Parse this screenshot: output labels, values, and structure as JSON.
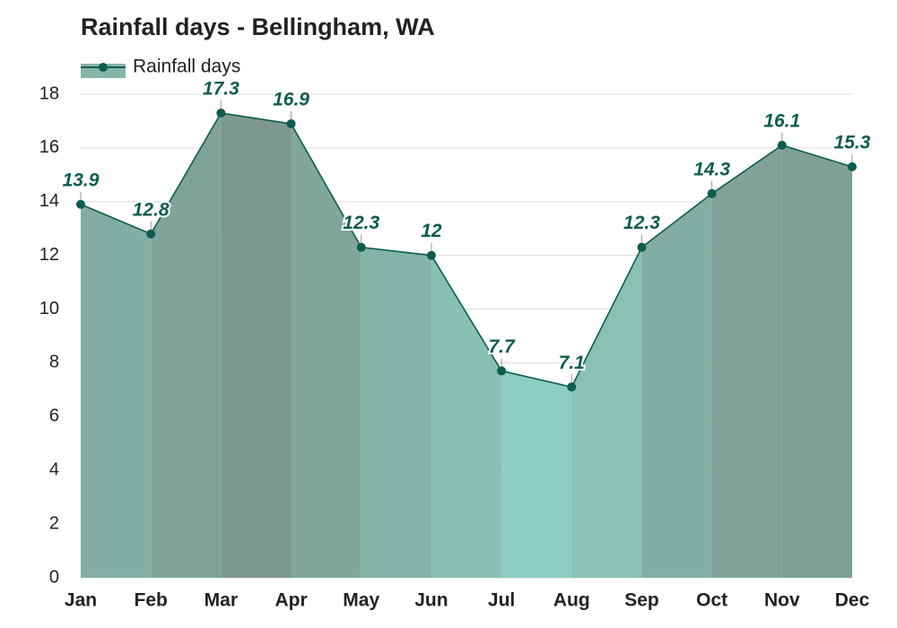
{
  "chart_data": {
    "type": "area-line",
    "title": "Rainfall days - Bellingham, WA",
    "categories": [
      "Jan",
      "Feb",
      "Mar",
      "Apr",
      "May",
      "Jun",
      "Jul",
      "Aug",
      "Sep",
      "Oct",
      "Nov",
      "Dec"
    ],
    "series": [
      {
        "name": "Rainfall days",
        "color": "#0d5c50",
        "values": [
          13.9,
          12.8,
          17.3,
          16.9,
          12.3,
          12,
          7.7,
          7.1,
          12.3,
          14.3,
          16.1,
          15.3
        ]
      }
    ],
    "ylim": [
      0,
      18
    ],
    "yticks": [
      0,
      2,
      4,
      6,
      8,
      10,
      12,
      14,
      16,
      18
    ],
    "grid": true,
    "legend": "top-left"
  }
}
